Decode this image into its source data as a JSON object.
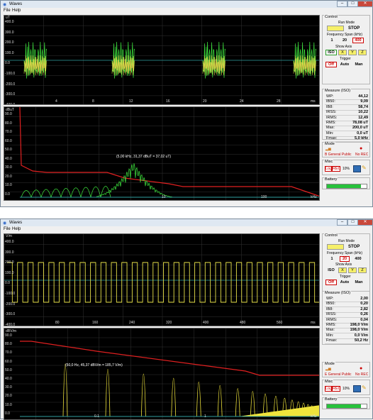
{
  "windows": [
    {
      "title": "Waves",
      "menu": [
        "File",
        "Help"
      ],
      "top_plot": {
        "y_unit": "uT",
        "y_ticks": [
          "400.0",
          "300.0",
          "200.0",
          "100.0",
          "0.0",
          "-100.0",
          "-200.0",
          "-300.0",
          "-400.0"
        ],
        "x_ticks": [
          "4",
          "8",
          "12",
          "16",
          "20",
          "24",
          "28"
        ],
        "x_unit": "ms"
      },
      "spectrum_plot": {
        "y_unit": "dBuT",
        "y_ticks": [
          "90.0",
          "80.0",
          "70.0",
          "60.0",
          "50.0",
          "40.0",
          "30.0",
          "20.0",
          "10.0",
          "0.0"
        ],
        "x_ticks": [
          "10",
          "100"
        ],
        "x_unit": "kHz",
        "annotation": "(5,00 kHz, 31,37 dBuT = 37,02 uT)"
      },
      "control": {
        "title": "Control",
        "run_mode_label": "Run Mode",
        "stop_label": "STOP",
        "span_label": "Frequency Span (kHz)",
        "span_options": [
          "1",
          "20",
          "400"
        ],
        "span_selected": "400",
        "axis_label": "Show Axis",
        "axis_options": [
          "ISO",
          "X",
          "Y",
          "Z"
        ],
        "axis_selected": "ISO",
        "trigger_label": "Trigger",
        "trigger_options": [
          "Off",
          "Auto",
          "Man"
        ],
        "trigger_selected": "Off"
      },
      "measure": {
        "title": "Measure (ISO)",
        "rows": [
          {
            "k": "WP:",
            "v": "44,12"
          },
          {
            "k": "IB50:",
            "v": "9,09"
          },
          {
            "k": "IB8:",
            "v": "58,74"
          },
          {
            "k": "IRSS:",
            "v": "10,22"
          },
          {
            "k": "IRMS:",
            "v": "12,49"
          },
          {
            "k": "RMS:",
            "v": "78,08 uT"
          },
          {
            "k": "Max:",
            "v": "200,0 uT"
          },
          {
            "k": "Min:",
            "v": "0,0 uT"
          },
          {
            "k": "Fmax:",
            "v": "5,0 kHz"
          }
        ]
      },
      "mode": {
        "title": "Mode",
        "standard": "B General Public",
        "rec": "No REC"
      },
      "misc": {
        "title": "Misc",
        "log": "Log",
        "rec": "REC",
        "pct": "10%"
      },
      "battery": {
        "title": "Battery",
        "level": 0.85
      }
    },
    {
      "title": "Waves",
      "menu": [
        "File",
        "Help"
      ],
      "top_plot": {
        "y_unit": "V/m",
        "y_ticks": [
          "400.0",
          "300.0",
          "200.0",
          "100.0",
          "0.0",
          "-100.0",
          "-200.0",
          "-300.0",
          "-400.0"
        ],
        "x_ticks": [
          "80",
          "160",
          "240",
          "320",
          "400",
          "480",
          "560"
        ],
        "x_unit": "ms"
      },
      "spectrum_plot": {
        "y_unit": "dBV/m",
        "y_ticks": [
          "90.0",
          "80.0",
          "70.0",
          "60.0",
          "50.0",
          "40.0",
          "30.0",
          "20.0",
          "10.0",
          "0.0"
        ],
        "x_ticks": [
          "0.1",
          "1"
        ],
        "x_unit": "kHz",
        "annotation": "(50,0 Hz, 45,37 dBV/m = 185,7 V/m)"
      },
      "control": {
        "title": "Control",
        "run_mode_label": "Run Mode",
        "stop_label": "STOP",
        "span_label": "Frequency Span (kHz)",
        "span_options": [
          "1",
          "20",
          "400"
        ],
        "span_selected": "20",
        "axis_label": "Show Axis",
        "axis_options": [
          "ISO",
          "X",
          "Y",
          "Z"
        ],
        "axis_selected": "ISO",
        "trigger_label": "Trigger",
        "trigger_options": [
          "Off",
          "Auto",
          "Man"
        ],
        "trigger_selected": "Off"
      },
      "measure": {
        "title": "Measure (ISO)",
        "rows": [
          {
            "k": "WP:",
            "v": "2,00"
          },
          {
            "k": "IB50:",
            "v": "0,20"
          },
          {
            "k": "IB8:",
            "v": "2,82"
          },
          {
            "k": "IRSS:",
            "v": "0,26"
          },
          {
            "k": "IRMS:",
            "v": "0,04"
          },
          {
            "k": "RMS:",
            "v": "198,0 V/m"
          },
          {
            "k": "Max:",
            "v": "198,0 V/m"
          },
          {
            "k": "Min:",
            "v": "0,0 V/m"
          },
          {
            "k": "Fmax:",
            "v": "50,2 Hz"
          }
        ]
      },
      "mode": {
        "title": "Mode",
        "standard": "E General Public",
        "rec": "No REC"
      },
      "misc": {
        "title": "Misc",
        "log": "Log",
        "rec": "REC",
        "pct": "10%"
      },
      "battery": {
        "title": "Battery",
        "level": 0.85
      }
    }
  ]
}
